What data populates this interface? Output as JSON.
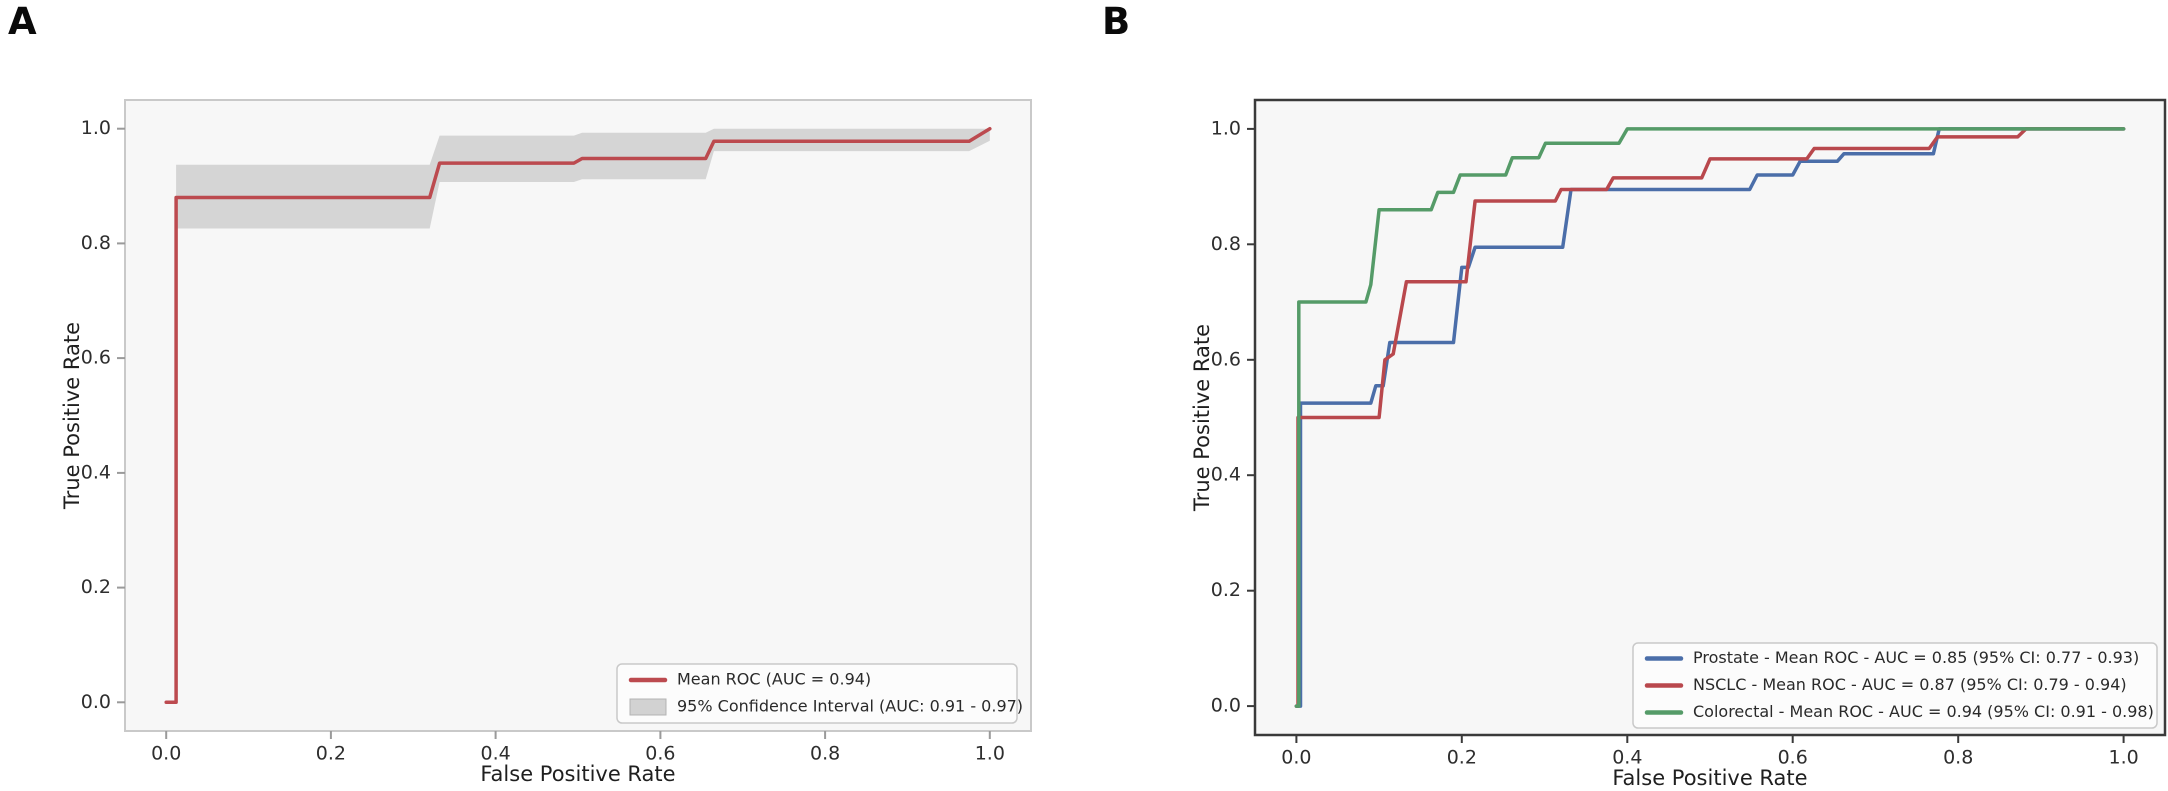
{
  "figure": {
    "panel_a_label": "A",
    "panel_b_label": "B"
  },
  "chart_data": [
    {
      "type": "line",
      "panel_label": "A",
      "title": "",
      "xlabel": "False Positive Rate",
      "ylabel": "True Positive Rate",
      "xticks": [
        0.0,
        0.2,
        0.4,
        0.6,
        0.8,
        1.0
      ],
      "yticks": [
        0.0,
        0.2,
        0.4,
        0.6,
        0.8,
        1.0
      ],
      "xlim": [
        -0.05,
        1.05
      ],
      "ylim": [
        -0.05,
        1.05
      ],
      "grid": false,
      "legend_position": "lower right",
      "plot_bg": "#f7f7f7",
      "series": [
        {
          "name": "Mean ROC (AUC = 0.94)",
          "color": "#bc4a4f",
          "points": [
            [
              0,
              0
            ],
            [
              0.012,
              0
            ],
            [
              0.012,
              0.88
            ],
            [
              0.32,
              0.88
            ],
            [
              0.332,
              0.94
            ],
            [
              0.495,
              0.94
            ],
            [
              0.505,
              0.948
            ],
            [
              0.655,
              0.948
            ],
            [
              0.665,
              0.978
            ],
            [
              0.975,
              0.978
            ],
            [
              1,
              1
            ]
          ]
        }
      ],
      "band": {
        "name": "95% Confidence Interval (AUC: 0.91 - 0.97)",
        "color": "#cccccc",
        "upper": [
          [
            0.012,
            0.937
          ],
          [
            0.32,
            0.937
          ],
          [
            0.332,
            0.988
          ],
          [
            0.495,
            0.988
          ],
          [
            0.505,
            0.993
          ],
          [
            0.655,
            0.993
          ],
          [
            0.665,
            1.0
          ],
          [
            1,
            1
          ]
        ],
        "lower": [
          [
            0.012,
            0.826
          ],
          [
            0.32,
            0.826
          ],
          [
            0.332,
            0.907
          ],
          [
            0.495,
            0.907
          ],
          [
            0.505,
            0.912
          ],
          [
            0.655,
            0.912
          ],
          [
            0.665,
            0.961
          ],
          [
            0.975,
            0.961
          ],
          [
            1,
            0.979
          ]
        ]
      }
    },
    {
      "type": "line",
      "panel_label": "B",
      "title": "",
      "xlabel": "False Positive Rate",
      "ylabel": "True Positive Rate",
      "xticks": [
        0.0,
        0.2,
        0.4,
        0.6,
        0.8,
        1.0
      ],
      "yticks": [
        0.0,
        0.2,
        0.4,
        0.6,
        0.8,
        1.0
      ],
      "xlim": [
        -0.05,
        1.05
      ],
      "ylim": [
        -0.05,
        1.05
      ],
      "grid": false,
      "legend_position": "lower right",
      "plot_bg": "#f7f7f7",
      "series": [
        {
          "name": "Prostate - Mean ROC - AUC = 0.85 (95% CI: 0.77 - 0.93)",
          "color": "#4b6ea9",
          "points": [
            [
              0,
              0
            ],
            [
              0.005,
              0
            ],
            [
              0.005,
              0.525
            ],
            [
              0.09,
              0.525
            ],
            [
              0.096,
              0.555
            ],
            [
              0.105,
              0.555
            ],
            [
              0.113,
              0.63
            ],
            [
              0.19,
              0.63
            ],
            [
              0.2,
              0.76
            ],
            [
              0.208,
              0.76
            ],
            [
              0.216,
              0.795
            ],
            [
              0.322,
              0.795
            ],
            [
              0.332,
              0.895
            ],
            [
              0.548,
              0.895
            ],
            [
              0.557,
              0.92
            ],
            [
              0.6,
              0.92
            ],
            [
              0.609,
              0.944
            ],
            [
              0.654,
              0.944
            ],
            [
              0.662,
              0.957
            ],
            [
              0.77,
              0.957
            ],
            [
              0.777,
              1.0
            ],
            [
              1,
              1
            ]
          ]
        },
        {
          "name": "NSCLC - Mean ROC - AUC = 0.87 (95% CI: 0.79 - 0.94)",
          "color": "#b9484d",
          "points": [
            [
              0,
              0
            ],
            [
              0.002,
              0
            ],
            [
              0.002,
              0.5
            ],
            [
              0.1,
              0.5
            ],
            [
              0.107,
              0.6
            ],
            [
              0.117,
              0.61
            ],
            [
              0.133,
              0.735
            ],
            [
              0.205,
              0.735
            ],
            [
              0.216,
              0.875
            ],
            [
              0.313,
              0.875
            ],
            [
              0.32,
              0.895
            ],
            [
              0.375,
              0.895
            ],
            [
              0.383,
              0.915
            ],
            [
              0.49,
              0.915
            ],
            [
              0.5,
              0.948
            ],
            [
              0.617,
              0.948
            ],
            [
              0.626,
              0.966
            ],
            [
              0.765,
              0.966
            ],
            [
              0.775,
              0.986
            ],
            [
              0.872,
              0.986
            ],
            [
              0.882,
              1.0
            ],
            [
              1,
              1
            ]
          ]
        },
        {
          "name": "Colorectal - Mean ROC - AUC = 0.94 (95% CI: 0.91 - 0.98)",
          "color": "#559b68",
          "points": [
            [
              0,
              0
            ],
            [
              0.003,
              0
            ],
            [
              0.003,
              0.7
            ],
            [
              0.084,
              0.7
            ],
            [
              0.09,
              0.73
            ],
            [
              0.1,
              0.86
            ],
            [
              0.163,
              0.86
            ],
            [
              0.171,
              0.89
            ],
            [
              0.19,
              0.89
            ],
            [
              0.198,
              0.92
            ],
            [
              0.253,
              0.92
            ],
            [
              0.261,
              0.95
            ],
            [
              0.293,
              0.95
            ],
            [
              0.301,
              0.975
            ],
            [
              0.39,
              0.975
            ],
            [
              0.4,
              1.0
            ],
            [
              1,
              1
            ]
          ]
        }
      ]
    }
  ]
}
